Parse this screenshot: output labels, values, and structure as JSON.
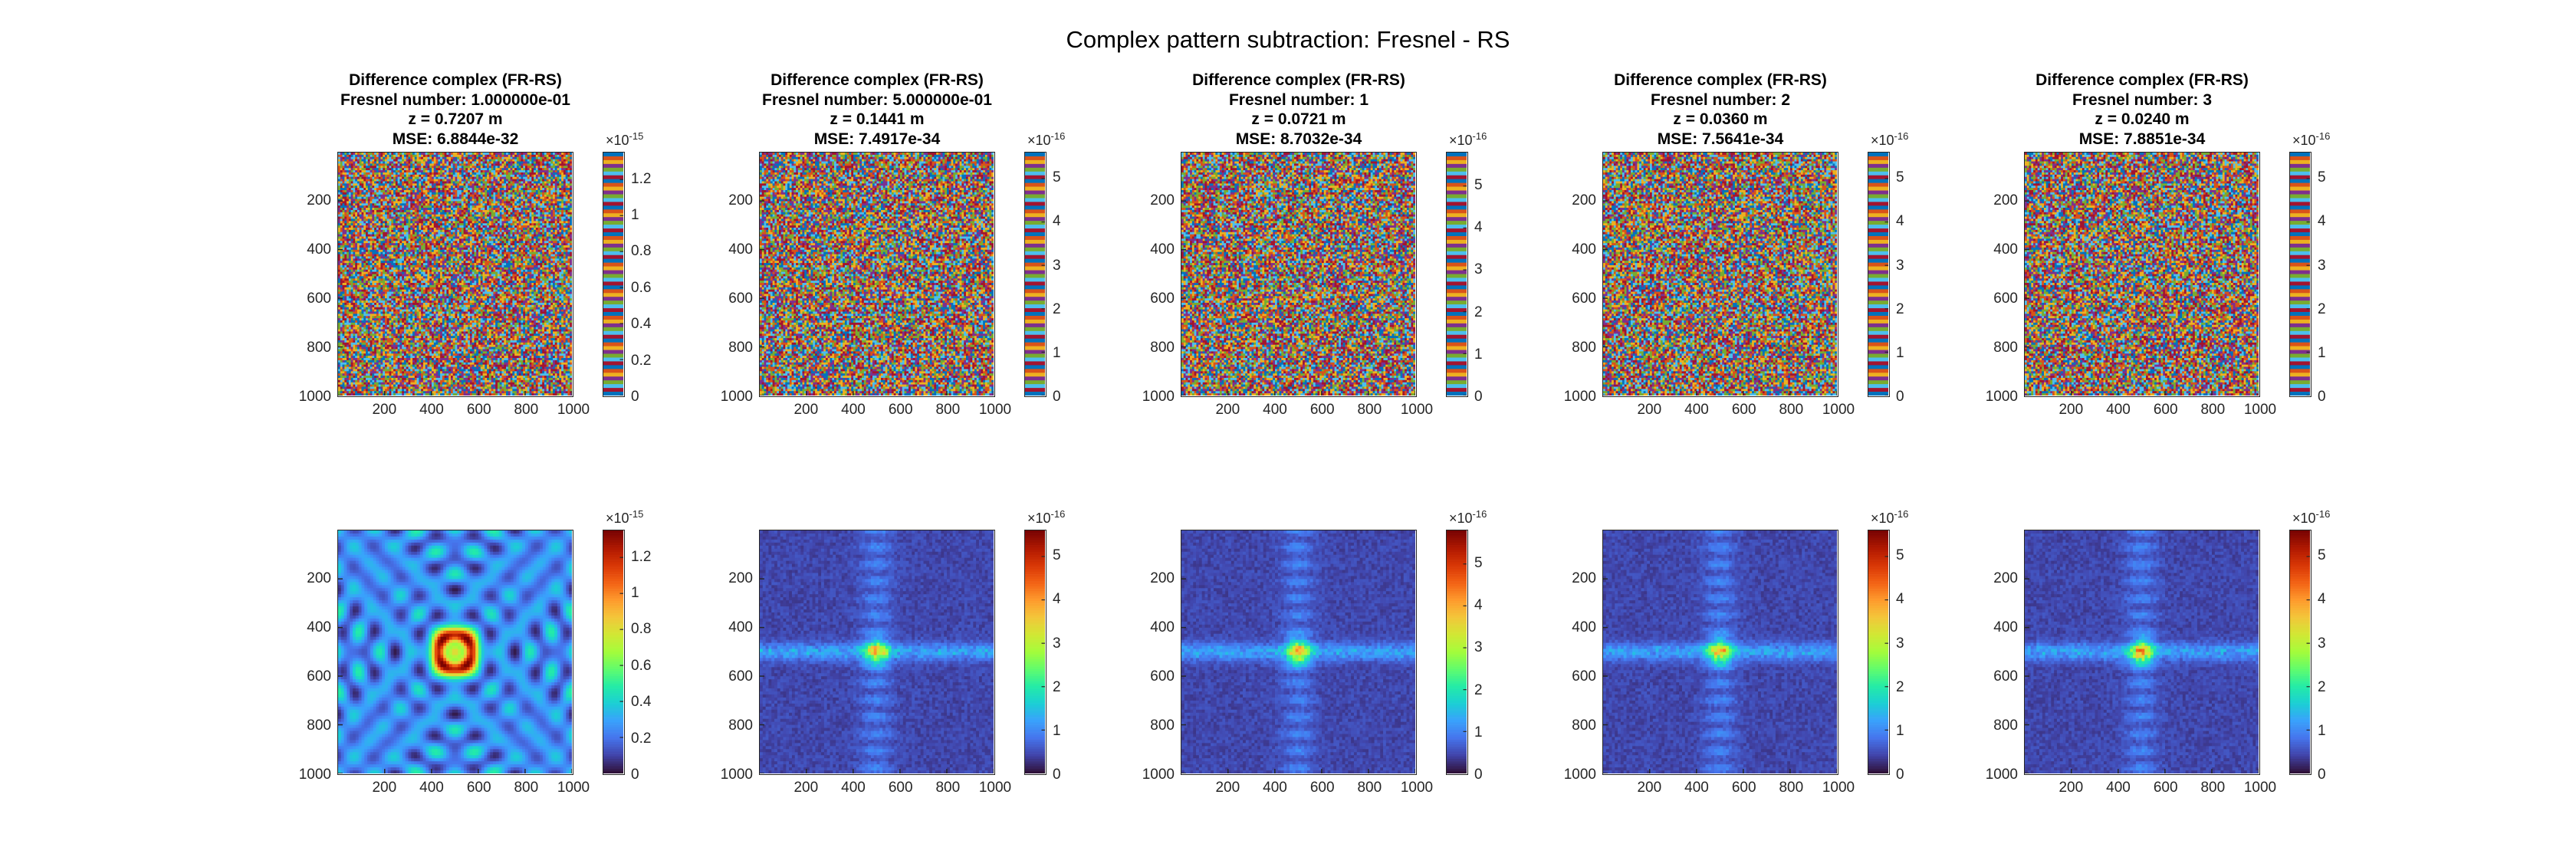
{
  "figure_title": "Complex pattern subtraction: Fresnel - RS",
  "chart_data": [
    {
      "type": "heatmap",
      "row": "top",
      "title_lines": [
        "Difference complex (FR-RS)",
        "Fresnel number: 1.000000e-01",
        "z = 0.7207 m",
        "MSE: 6.8844e-32"
      ],
      "xlim": [
        1,
        1000
      ],
      "ylim": [
        1,
        1000
      ],
      "y_reversed": true,
      "xticks": [
        200,
        400,
        600,
        800,
        1000
      ],
      "yticks": [
        200,
        400,
        600,
        800,
        1000
      ],
      "cbar_ticks": [
        0,
        0.2,
        0.4,
        0.6,
        0.8,
        1,
        1.2
      ],
      "cbar_ticklabels": [
        "0",
        "0.2",
        "0.4",
        "0.6",
        "0.8",
        "1",
        "1.2"
      ],
      "cbar_range": [
        0,
        1.35
      ],
      "cbar_exponent": "-15",
      "colormap": "lines",
      "pattern": "noise"
    },
    {
      "type": "heatmap",
      "row": "top",
      "title_lines": [
        "Difference complex (FR-RS)",
        "Fresnel number: 5.000000e-01",
        "z = 0.1441 m",
        "MSE: 7.4917e-34"
      ],
      "xlim": [
        1,
        1000
      ],
      "ylim": [
        1,
        1000
      ],
      "y_reversed": true,
      "xticks": [
        200,
        400,
        600,
        800,
        1000
      ],
      "yticks": [
        200,
        400,
        600,
        800,
        1000
      ],
      "cbar_ticks": [
        0,
        1,
        2,
        3,
        4,
        5
      ],
      "cbar_ticklabels": [
        "0",
        "1",
        "2",
        "3",
        "4",
        "5"
      ],
      "cbar_range": [
        0,
        5.6
      ],
      "cbar_exponent": "-16",
      "colormap": "lines",
      "pattern": "noise"
    },
    {
      "type": "heatmap",
      "row": "top",
      "title_lines": [
        "Difference complex (FR-RS)",
        "Fresnel number: 1",
        "z = 0.0721 m",
        "MSE: 8.7032e-34"
      ],
      "xlim": [
        1,
        1000
      ],
      "ylim": [
        1,
        1000
      ],
      "y_reversed": true,
      "xticks": [
        200,
        400,
        600,
        800,
        1000
      ],
      "yticks": [
        200,
        400,
        600,
        800,
        1000
      ],
      "cbar_ticks": [
        0,
        1,
        2,
        3,
        4,
        5
      ],
      "cbar_ticklabels": [
        "0",
        "1",
        "2",
        "3",
        "4",
        "5"
      ],
      "cbar_range": [
        0,
        5.8
      ],
      "cbar_exponent": "-16",
      "colormap": "lines",
      "pattern": "noise"
    },
    {
      "type": "heatmap",
      "row": "top",
      "title_lines": [
        "Difference complex (FR-RS)",
        "Fresnel number: 2",
        "z = 0.0360 m",
        "MSE: 7.5641e-34"
      ],
      "xlim": [
        1,
        1000
      ],
      "ylim": [
        1,
        1000
      ],
      "y_reversed": true,
      "xticks": [
        200,
        400,
        600,
        800,
        1000
      ],
      "yticks": [
        200,
        400,
        600,
        800,
        1000
      ],
      "cbar_ticks": [
        0,
        1,
        2,
        3,
        4,
        5
      ],
      "cbar_ticklabels": [
        "0",
        "1",
        "2",
        "3",
        "4",
        "5"
      ],
      "cbar_range": [
        0,
        5.6
      ],
      "cbar_exponent": "-16",
      "colormap": "lines",
      "pattern": "noise"
    },
    {
      "type": "heatmap",
      "row": "top",
      "title_lines": [
        "Difference complex (FR-RS)",
        "Fresnel number: 3",
        "z = 0.0240 m",
        "MSE: 7.8851e-34"
      ],
      "xlim": [
        1,
        1000
      ],
      "ylim": [
        1,
        1000
      ],
      "y_reversed": true,
      "xticks": [
        200,
        400,
        600,
        800,
        1000
      ],
      "yticks": [
        200,
        400,
        600,
        800,
        1000
      ],
      "cbar_ticks": [
        0,
        1,
        2,
        3,
        4,
        5
      ],
      "cbar_ticklabels": [
        "0",
        "1",
        "2",
        "3",
        "4",
        "5"
      ],
      "cbar_range": [
        0,
        5.6
      ],
      "cbar_exponent": "-16",
      "colormap": "lines",
      "pattern": "noise"
    },
    {
      "type": "heatmap",
      "row": "bottom",
      "title_lines": [],
      "xlim": [
        1,
        1000
      ],
      "ylim": [
        1,
        1000
      ],
      "y_reversed": true,
      "xticks": [
        200,
        400,
        600,
        800,
        1000
      ],
      "yticks": [
        200,
        400,
        600,
        800,
        1000
      ],
      "cbar_ticks": [
        0,
        0.2,
        0.4,
        0.6,
        0.8,
        1,
        1.2
      ],
      "cbar_ticklabels": [
        "0",
        "0.2",
        "0.4",
        "0.6",
        "0.8",
        "1",
        "1.2"
      ],
      "cbar_range": [
        0,
        1.35
      ],
      "cbar_exponent": "-15",
      "colormap": "turbo",
      "pattern": "rings"
    },
    {
      "type": "heatmap",
      "row": "bottom",
      "title_lines": [],
      "xlim": [
        1,
        1000
      ],
      "ylim": [
        1,
        1000
      ],
      "y_reversed": true,
      "xticks": [
        200,
        400,
        600,
        800,
        1000
      ],
      "yticks": [
        200,
        400,
        600,
        800,
        1000
      ],
      "cbar_ticks": [
        0,
        1,
        2,
        3,
        4,
        5
      ],
      "cbar_ticklabels": [
        "0",
        "1",
        "2",
        "3",
        "4",
        "5"
      ],
      "cbar_range": [
        0,
        5.6
      ],
      "cbar_exponent": "-16",
      "colormap": "turbo",
      "pattern": "cross"
    },
    {
      "type": "heatmap",
      "row": "bottom",
      "title_lines": [],
      "xlim": [
        1,
        1000
      ],
      "ylim": [
        1,
        1000
      ],
      "y_reversed": true,
      "xticks": [
        200,
        400,
        600,
        800,
        1000
      ],
      "yticks": [
        200,
        400,
        600,
        800,
        1000
      ],
      "cbar_ticks": [
        0,
        1,
        2,
        3,
        4,
        5
      ],
      "cbar_ticklabels": [
        "0",
        "1",
        "2",
        "3",
        "4",
        "5"
      ],
      "cbar_range": [
        0,
        5.8
      ],
      "cbar_exponent": "-16",
      "colormap": "turbo",
      "pattern": "cross"
    },
    {
      "type": "heatmap",
      "row": "bottom",
      "title_lines": [],
      "xlim": [
        1,
        1000
      ],
      "ylim": [
        1,
        1000
      ],
      "y_reversed": true,
      "xticks": [
        200,
        400,
        600,
        800,
        1000
      ],
      "yticks": [
        200,
        400,
        600,
        800,
        1000
      ],
      "cbar_ticks": [
        0,
        1,
        2,
        3,
        4,
        5
      ],
      "cbar_ticklabels": [
        "0",
        "1",
        "2",
        "3",
        "4",
        "5"
      ],
      "cbar_range": [
        0,
        5.6
      ],
      "cbar_exponent": "-16",
      "colormap": "turbo",
      "pattern": "cross"
    },
    {
      "type": "heatmap",
      "row": "bottom",
      "title_lines": [],
      "xlim": [
        1,
        1000
      ],
      "ylim": [
        1,
        1000
      ],
      "y_reversed": true,
      "xticks": [
        200,
        400,
        600,
        800,
        1000
      ],
      "yticks": [
        200,
        400,
        600,
        800,
        1000
      ],
      "cbar_ticks": [
        0,
        1,
        2,
        3,
        4,
        5
      ],
      "cbar_ticklabels": [
        "0",
        "1",
        "2",
        "3",
        "4",
        "5"
      ],
      "cbar_range": [
        0,
        5.6
      ],
      "cbar_exponent": "-16",
      "colormap": "turbo",
      "pattern": "cross"
    }
  ]
}
